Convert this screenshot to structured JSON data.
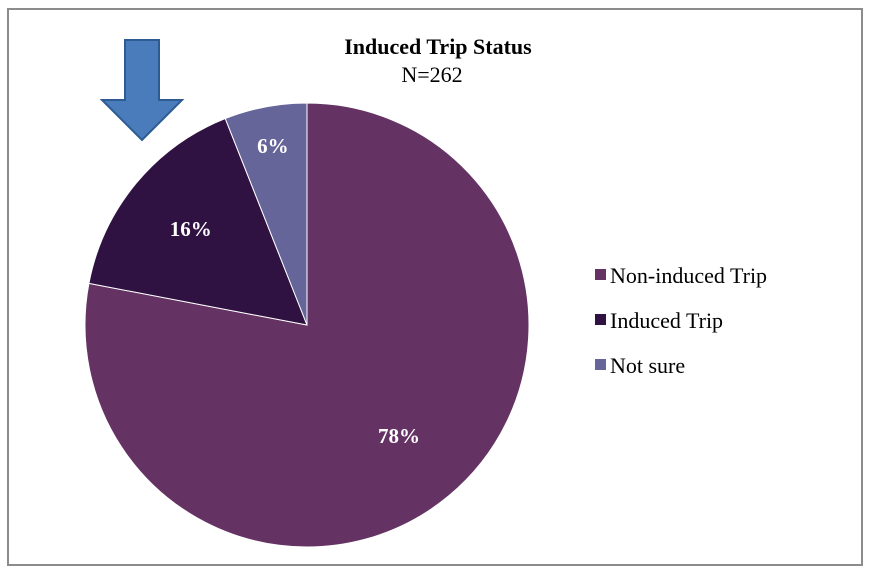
{
  "chart_data": {
    "type": "pie",
    "title": "Induced Trip Status",
    "subtitle": "N=262",
    "legend_position": "right",
    "slices": [
      {
        "label": "Non-induced Trip",
        "value": 78,
        "value_label": "78%",
        "color": "#643263"
      },
      {
        "label": "Induced Trip",
        "value": 16,
        "value_label": "16%",
        "color": "#2f1242"
      },
      {
        "label": "Not sure",
        "value": 6,
        "value_label": "6%",
        "color": "#66659a"
      }
    ]
  },
  "annotation": {
    "arrow_color": "#4a7cbc",
    "arrow_target": "Induced Trip"
  }
}
